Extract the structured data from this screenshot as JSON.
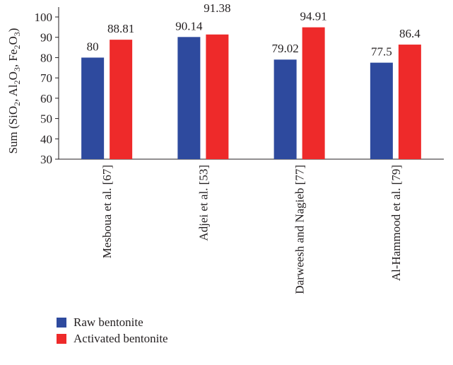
{
  "chart_data": {
    "type": "bar",
    "ylabel": {
      "prefix": "Sum (SiO",
      "sub1": "2",
      "mid1": ", Al",
      "sub2": "2",
      "mid2": "O",
      "sub3": "3",
      "mid3": ", Fe",
      "sub4": "2",
      "mid4": "O",
      "sub5": "3",
      "suffix": ")"
    },
    "ylim": [
      30,
      100
    ],
    "yticks": [
      "30",
      "40",
      "50",
      "60",
      "70",
      "80",
      "90",
      "100"
    ],
    "categories": [
      "Mesboua et al. [67]",
      "Adjei et al. [53]",
      "Darweesh and Nagieb [77]",
      "Al-Hammood et al. [79]"
    ],
    "series": [
      {
        "name": "Raw bentonite",
        "color": "#2e4a9e",
        "values": [
          80,
          90.14,
          79.02,
          77.5
        ],
        "labels": [
          "80",
          "90.14",
          "79.02",
          "77.5"
        ]
      },
      {
        "name": "Activated bentonite",
        "color": "#ee2a2a",
        "values": [
          88.81,
          91.38,
          94.91,
          86.4
        ],
        "labels": [
          "88.81",
          "91.38",
          "94.91",
          "86.4"
        ]
      }
    ],
    "legend_position": "bottom-left",
    "grid": false
  }
}
